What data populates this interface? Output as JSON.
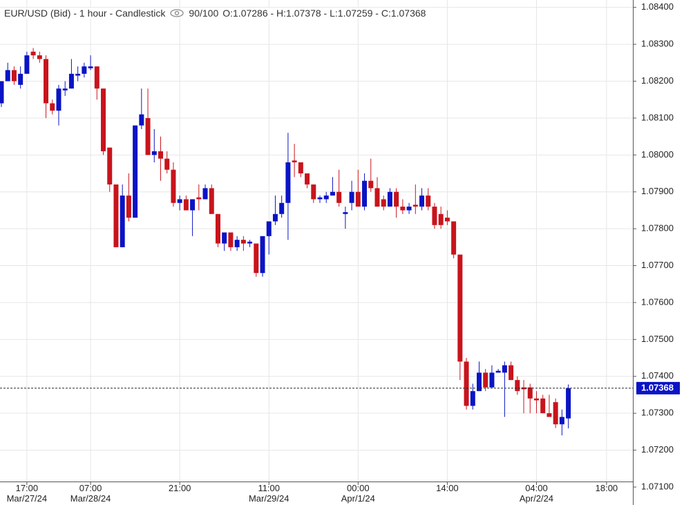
{
  "chart_data": {
    "type": "candlestick",
    "title": "EUR/USD (Bid) - 1 hour - Candlestick",
    "visibility": "90/100",
    "ohlc_label": "O:1.07286 - H:1.07378 - L:1.07259 - C:1.07368",
    "up_color": "#0a14c4",
    "down_color": "#c8141c",
    "categories": [
      null,
      null,
      null,
      null,
      "17:00\nMar/27/24",
      null,
      null,
      null,
      null,
      null,
      null,
      null,
      null,
      null,
      "07:00\nMar/28/24",
      null,
      null,
      null,
      null,
      null,
      null,
      null,
      null,
      null,
      null,
      null,
      null,
      null,
      "21:00",
      null,
      null,
      null,
      null,
      null,
      null,
      null,
      null,
      null,
      null,
      null,
      null,
      null,
      "11:00\nMar/29/24",
      null,
      null,
      null,
      null,
      null,
      null,
      null,
      null,
      null,
      null,
      null,
      null,
      null,
      "00:00\nApr/1/24",
      null,
      null,
      null,
      null,
      null,
      null,
      null,
      null,
      null,
      null,
      null,
      null,
      null,
      "14:00",
      null,
      null,
      null,
      null,
      null,
      null,
      null,
      null,
      null,
      null,
      null,
      null,
      null,
      "04:00\nApr/2/24",
      null,
      null,
      null,
      null,
      null,
      null,
      null,
      null,
      null,
      null,
      "18:00"
    ],
    "open": [
      1.0814,
      1.082,
      1.0823,
      1.0819,
      1.0822,
      1.0828,
      1.0827,
      1.0826,
      1.0814,
      1.0812,
      1.08175,
      1.0818,
      1.08215,
      1.0822,
      1.08235,
      1.0824,
      1.0818,
      1.0802,
      1.0792,
      1.0775,
      1.0789,
      1.0783,
      1.0808,
      1.081,
      1.08,
      1.0801,
      1.0799,
      1.0796,
      1.0787,
      1.0788,
      1.0785,
      1.07885,
      1.0788,
      1.0791,
      1.0784,
      1.0776,
      1.0779,
      1.0775,
      1.0777,
      1.0776,
      1.0776,
      1.0768,
      1.0778,
      1.0782,
      1.0784,
      1.0787,
      1.07985,
      1.0798,
      1.0795,
      1.0792,
      1.0788,
      1.0788,
      1.0789,
      1.079,
      1.0784,
      1.0787,
      1.079,
      1.0786,
      1.0793,
      1.0791,
      1.0788,
      1.0786,
      1.079,
      1.0786,
      1.0785,
      1.07865,
      1.0786,
      1.0789,
      1.0786,
      1.0784,
      1.0783,
      1.0782,
      1.0773,
      1.0744,
      1.0732,
      1.0736,
      1.0741,
      1.0737,
      1.0741,
      1.0741,
      1.0743,
      1.0739,
      1.0737,
      1.0737,
      1.0734,
      1.0734,
      1.073,
      1.0733,
      1.0727,
      1.07286,
      null,
      null,
      null,
      null,
      null,
      null
    ],
    "high": [
      1.082,
      1.0825,
      1.0824,
      1.0824,
      1.0828,
      1.0829,
      1.0828,
      1.0827,
      1.0815,
      1.0819,
      1.082,
      1.0826,
      1.0824,
      1.0825,
      1.0827,
      1.0824,
      1.0818,
      1.0802,
      1.0792,
      1.0792,
      1.0795,
      1.0808,
      1.0818,
      1.0818,
      1.0807,
      1.0805,
      1.0801,
      1.0798,
      1.0789,
      1.0789,
      1.0788,
      1.0792,
      1.0792,
      1.0792,
      1.0784,
      1.0779,
      1.0779,
      1.0778,
      1.0778,
      1.0777,
      1.0776,
      1.0778,
      1.0782,
      1.0789,
      1.0789,
      1.0806,
      1.0803,
      1.0798,
      1.0795,
      1.0792,
      1.0789,
      1.079,
      1.0794,
      1.0796,
      1.0786,
      1.0793,
      1.0796,
      1.0795,
      1.0799,
      1.0794,
      1.0789,
      1.0791,
      1.0791,
      1.0788,
      1.0787,
      1.0792,
      1.0791,
      1.0791,
      1.0787,
      1.0786,
      1.0785,
      1.0782,
      1.0773,
      1.0745,
      1.0738,
      1.0744,
      1.0742,
      1.0743,
      1.0742,
      1.0744,
      1.0744,
      1.074,
      1.0739,
      1.0738,
      1.0736,
      1.0735,
      1.0735,
      1.0734,
      1.0731,
      1.07378,
      null,
      null,
      null,
      null,
      null,
      null
    ],
    "low": [
      1.0813,
      1.082,
      1.0819,
      1.0818,
      1.0822,
      1.0826,
      1.0825,
      1.081,
      1.0811,
      1.0808,
      1.0816,
      1.0818,
      1.082,
      1.0821,
      1.0823,
      1.0815,
      1.08,
      1.079,
      1.0775,
      1.0775,
      1.0782,
      1.0783,
      1.0807,
      1.08,
      1.0798,
      1.0793,
      1.0795,
      1.0786,
      1.0785,
      1.0785,
      1.0778,
      1.0785,
      1.0788,
      1.0784,
      1.0775,
      1.0774,
      1.0774,
      1.0774,
      1.0774,
      1.0775,
      1.0767,
      1.0767,
      1.0773,
      1.0781,
      1.0783,
      1.0777,
      1.0794,
      1.0794,
      1.0791,
      1.0787,
      1.0787,
      1.0787,
      1.0789,
      1.0786,
      1.078,
      1.0785,
      1.0786,
      1.0785,
      1.079,
      1.0786,
      1.0785,
      1.0786,
      1.0783,
      1.0784,
      1.0784,
      1.0784,
      1.0785,
      1.0785,
      1.078,
      1.078,
      1.0781,
      1.0772,
      1.0739,
      1.0731,
      1.0731,
      1.0736,
      1.0736,
      1.0737,
      1.0741,
      1.0729,
      1.0739,
      1.0735,
      1.073,
      1.073,
      1.073,
      1.073,
      1.0729,
      1.0726,
      1.0724,
      1.07259,
      null,
      null,
      null,
      null,
      null,
      null
    ],
    "close": [
      1.082,
      1.0823,
      1.082,
      1.0822,
      1.0827,
      1.0827,
      1.0826,
      1.0814,
      1.0812,
      1.0818,
      1.0818,
      1.0822,
      1.0822,
      1.0824,
      1.0824,
      1.0818,
      1.0801,
      1.0792,
      1.0775,
      1.0789,
      1.0783,
      1.0808,
      1.0811,
      1.08,
      1.0801,
      1.0799,
      1.0796,
      1.0787,
      1.0788,
      1.0785,
      1.0788,
      1.0788,
      1.0791,
      1.0784,
      1.0776,
      1.0779,
      1.0775,
      1.0777,
      1.0776,
      1.07765,
      1.0768,
      1.0778,
      1.0782,
      1.0784,
      1.0787,
      1.0798,
      1.0798,
      1.0795,
      1.0792,
      1.0788,
      1.07885,
      1.0789,
      1.079,
      1.0787,
      1.07845,
      1.079,
      1.0786,
      1.0793,
      1.0791,
      1.0786,
      1.0786,
      1.079,
      1.0786,
      1.0785,
      1.0786,
      1.0786,
      1.0789,
      1.0786,
      1.0781,
      1.0781,
      1.0782,
      1.0773,
      1.0744,
      1.0732,
      1.0736,
      1.0741,
      1.0737,
      1.0741,
      1.07415,
      1.0743,
      1.0739,
      1.0736,
      1.07365,
      1.0734,
      1.07335,
      1.073,
      1.0729,
      1.0727,
      1.0729,
      1.07368,
      null,
      null,
      null,
      null,
      null,
      null
    ],
    "last_price": 1.07368,
    "ylim": [
      1.071,
      1.0842
    ],
    "yticks": [
      {
        "value": 1.071,
        "label": "1.07100"
      },
      {
        "value": 1.072,
        "label": "1.07200"
      },
      {
        "value": 1.073,
        "label": "1.07300"
      },
      {
        "value": 1.074,
        "label": "1.07400"
      },
      {
        "value": 1.075,
        "label": "1.07500"
      },
      {
        "value": 1.076,
        "label": "1.07600"
      },
      {
        "value": 1.077,
        "label": "1.07700"
      },
      {
        "value": 1.078,
        "label": "1.07800"
      },
      {
        "value": 1.079,
        "label": "1.07900"
      },
      {
        "value": 1.08,
        "label": "1.08000"
      },
      {
        "value": 1.081,
        "label": "1.08100"
      },
      {
        "value": 1.082,
        "label": "1.08200"
      },
      {
        "value": 1.083,
        "label": "1.08300"
      },
      {
        "value": 1.084,
        "label": "1.08400"
      }
    ],
    "grid": true
  }
}
